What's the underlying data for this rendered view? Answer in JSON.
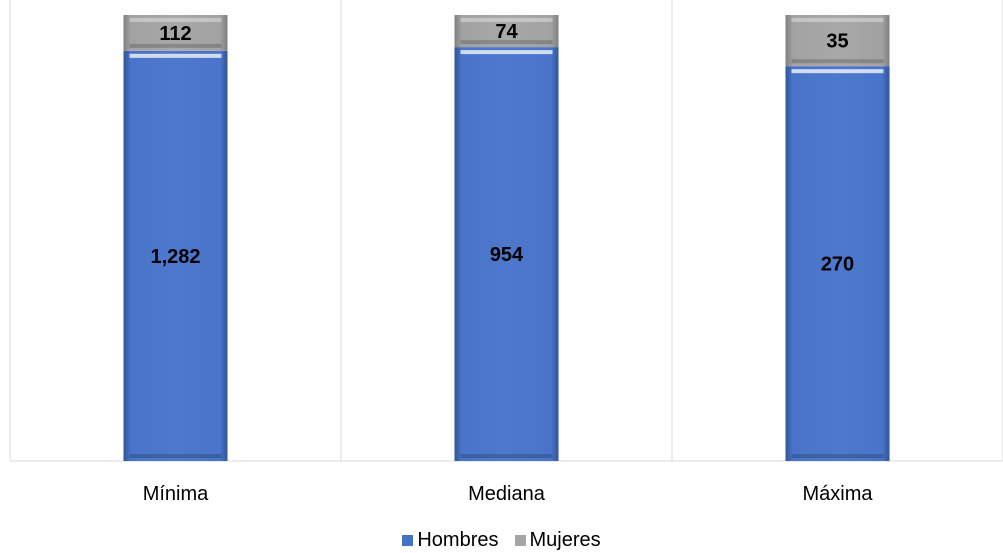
{
  "chart_data": {
    "type": "bar",
    "stacked": true,
    "categories": [
      "Mínima",
      "Mediana",
      "Máxima"
    ],
    "series": [
      {
        "name": "Hombres",
        "color": "#4472C4",
        "values": [
          1282,
          954,
          270
        ],
        "labels": [
          "1,282",
          "954",
          "270"
        ]
      },
      {
        "name": "Mujeres",
        "color": "#A5A5A5",
        "values": [
          112,
          74,
          35
        ],
        "labels": [
          "112",
          "74",
          "35"
        ]
      }
    ],
    "normalized": true,
    "grid": "vertical-separators",
    "legend": "bottom-center"
  }
}
